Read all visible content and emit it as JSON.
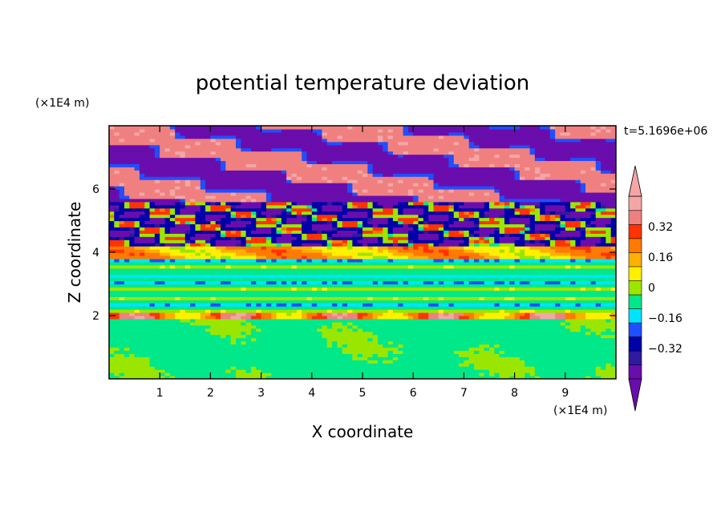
{
  "chart_data": {
    "type": "heatmap",
    "title": "potential temperature deviation",
    "xlabel": "X coordinate",
    "ylabel": "Z coordinate",
    "x_unit": "(×1E4 m)",
    "y_unit": "(×1E4 m)",
    "time_label": "t=5.1696e+06",
    "xlim": [
      0,
      10
    ],
    "ylim": [
      0,
      8
    ],
    "x_ticks": [
      1,
      2,
      3,
      4,
      5,
      6,
      7,
      8,
      9
    ],
    "y_ticks": [
      2,
      4,
      6
    ],
    "colorbar": {
      "levels": [
        -0.48,
        -0.4,
        -0.32,
        -0.24,
        -0.16,
        -0.08,
        0,
        0.08,
        0.16,
        0.24,
        0.32,
        0.4,
        0.48
      ],
      "labeled_levels": [
        {
          "value": 0.32,
          "text": "0.32"
        },
        {
          "value": 0.16,
          "text": "0.16"
        },
        {
          "value": 0,
          "text": "0"
        },
        {
          "value": -0.16,
          "text": "−0.16"
        },
        {
          "value": -0.32,
          "text": "−0.32"
        }
      ],
      "colors": [
        "#6a0dad",
        "#2e1a9e",
        "#0000a8",
        "#1f4fff",
        "#00e5ff",
        "#00e88a",
        "#9be600",
        "#fff000",
        "#ffb000",
        "#ff7a00",
        "#ff3300",
        "#f08080",
        "#f4a6a6"
      ],
      "over_color": "#f4a6a6",
      "under_color": "#6a0dad",
      "extend": "both"
    },
    "bands": [
      {
        "z0": 0.0,
        "z1": 1.9,
        "value": -0.04,
        "note": "mostly near-zero with light-green patches"
      },
      {
        "z0": 1.9,
        "z1": 2.1,
        "value": 0.44
      },
      {
        "z0": 2.1,
        "z1": 3.8,
        "value": -0.05
      },
      {
        "z0": 3.8,
        "z1": 4.2,
        "value": 0.2
      },
      {
        "z0": 4.2,
        "z1": 5.6,
        "value": -0.44
      },
      {
        "z0": 5.6,
        "z1": 8.0,
        "value": 0.46
      }
    ]
  }
}
